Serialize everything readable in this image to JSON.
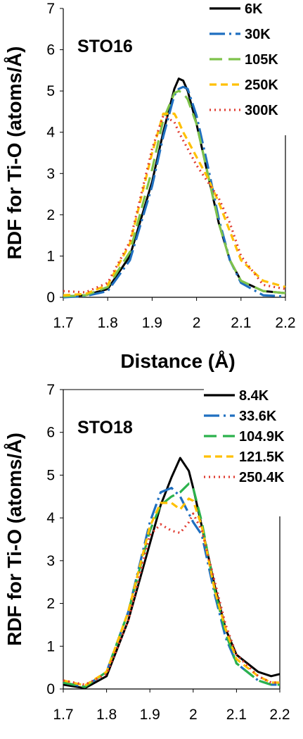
{
  "chart_data": [
    {
      "type": "line",
      "panel_label": "STO16",
      "xlabel": "Distance (Å)",
      "ylabel": "RDF for Ti-O (atoms/Å)",
      "xlim": [
        1.7,
        2.2
      ],
      "ylim": [
        0,
        7
      ],
      "x_ticks": [
        "1.7",
        "1.8",
        "1.9",
        "2",
        "2.1",
        "2.2"
      ],
      "y_ticks": [
        "0",
        "1",
        "2",
        "3",
        "4",
        "5",
        "6",
        "7"
      ],
      "grid": false,
      "legend_position": "top-right",
      "x": [
        1.7,
        1.75,
        1.8,
        1.85,
        1.9,
        1.925,
        1.95,
        1.96,
        1.97,
        1.98,
        2.0,
        2.025,
        2.05,
        2.075,
        2.1,
        2.15,
        2.2
      ],
      "series": [
        {
          "name": "6K",
          "color": "#000000",
          "dash": "solid",
          "values": [
            0.02,
            0.05,
            0.2,
            1.0,
            2.8,
            4.0,
            5.05,
            5.3,
            5.25,
            5.0,
            4.2,
            3.0,
            1.8,
            0.9,
            0.4,
            0.15,
            0.1
          ]
        },
        {
          "name": "30K",
          "color": "#1f6fc0",
          "dash": "dashdot",
          "values": [
            0.0,
            0.03,
            0.15,
            0.9,
            2.7,
            3.9,
            4.9,
            5.05,
            5.1,
            5.05,
            4.4,
            3.2,
            1.9,
            0.9,
            0.35,
            0.05,
            0.02
          ]
        },
        {
          "name": "105K",
          "color": "#7ec24a",
          "dash": "longdash",
          "values": [
            0.02,
            0.05,
            0.25,
            1.1,
            3.1,
            4.3,
            4.95,
            5.0,
            4.95,
            4.8,
            4.2,
            3.0,
            1.8,
            0.9,
            0.4,
            0.15,
            0.1
          ]
        },
        {
          "name": "250K",
          "color": "#ffc000",
          "dash": "dash",
          "values": [
            0.05,
            0.08,
            0.3,
            1.3,
            3.5,
            4.45,
            4.45,
            4.25,
            4.0,
            3.8,
            3.4,
            2.9,
            2.3,
            1.6,
            0.9,
            0.4,
            0.25
          ]
        },
        {
          "name": "300K",
          "color": "#e03c31",
          "dash": "dot",
          "values": [
            0.15,
            0.12,
            0.35,
            1.35,
            3.6,
            4.4,
            4.25,
            4.0,
            3.8,
            3.6,
            3.2,
            2.8,
            2.4,
            1.8,
            1.0,
            0.3,
            0.2
          ]
        }
      ]
    },
    {
      "type": "line",
      "panel_label": "STO18",
      "xlabel": "Distance (Å)",
      "ylabel": "RDF for Ti-O (atoms/Å)",
      "xlim": [
        1.7,
        2.2
      ],
      "ylim": [
        0,
        7
      ],
      "x_ticks": [
        "1.7",
        "1.8",
        "1.9",
        "2",
        "2.1",
        "2.2"
      ],
      "y_ticks": [
        "0",
        "1",
        "2",
        "3",
        "4",
        "5",
        "6",
        "7"
      ],
      "grid": false,
      "legend_position": "top-right",
      "x": [
        1.7,
        1.75,
        1.8,
        1.85,
        1.9,
        1.925,
        1.95,
        1.97,
        1.99,
        2.0,
        2.02,
        2.05,
        2.075,
        2.1,
        2.15,
        2.18,
        2.2
      ],
      "series": [
        {
          "name": "8.4K",
          "color": "#000000",
          "dash": "solid",
          "values": [
            0.1,
            0.02,
            0.3,
            1.6,
            3.4,
            4.3,
            4.95,
            5.4,
            5.1,
            4.7,
            3.8,
            2.4,
            1.4,
            0.8,
            0.4,
            0.3,
            0.35
          ]
        },
        {
          "name": "33.6K",
          "color": "#1f6fc0",
          "dash": "dashdot",
          "values": [
            0.15,
            0.05,
            0.4,
            1.8,
            3.9,
            4.6,
            4.7,
            4.5,
            4.1,
            3.9,
            3.6,
            2.2,
            1.2,
            0.6,
            0.2,
            0.1,
            0.1
          ]
        },
        {
          "name": "104.9K",
          "color": "#2bb24c",
          "dash": "longdash",
          "values": [
            0.15,
            0.05,
            0.4,
            1.8,
            3.7,
            4.3,
            4.5,
            4.6,
            4.8,
            4.7,
            3.9,
            2.3,
            1.3,
            0.6,
            0.2,
            0.1,
            0.1
          ]
        },
        {
          "name": "121.5K",
          "color": "#ffc000",
          "dash": "dash",
          "values": [
            0.2,
            0.08,
            0.4,
            1.8,
            3.8,
            4.35,
            4.35,
            4.2,
            4.45,
            4.4,
            3.8,
            2.3,
            1.4,
            0.7,
            0.3,
            0.15,
            0.15
          ]
        },
        {
          "name": "250.4K",
          "color": "#e03c31",
          "dash": "dot",
          "values": [
            0.2,
            0.1,
            0.35,
            1.6,
            3.6,
            3.85,
            3.7,
            3.65,
            3.9,
            4.1,
            3.7,
            2.5,
            1.5,
            0.8,
            0.3,
            0.15,
            0.15
          ]
        }
      ]
    }
  ]
}
